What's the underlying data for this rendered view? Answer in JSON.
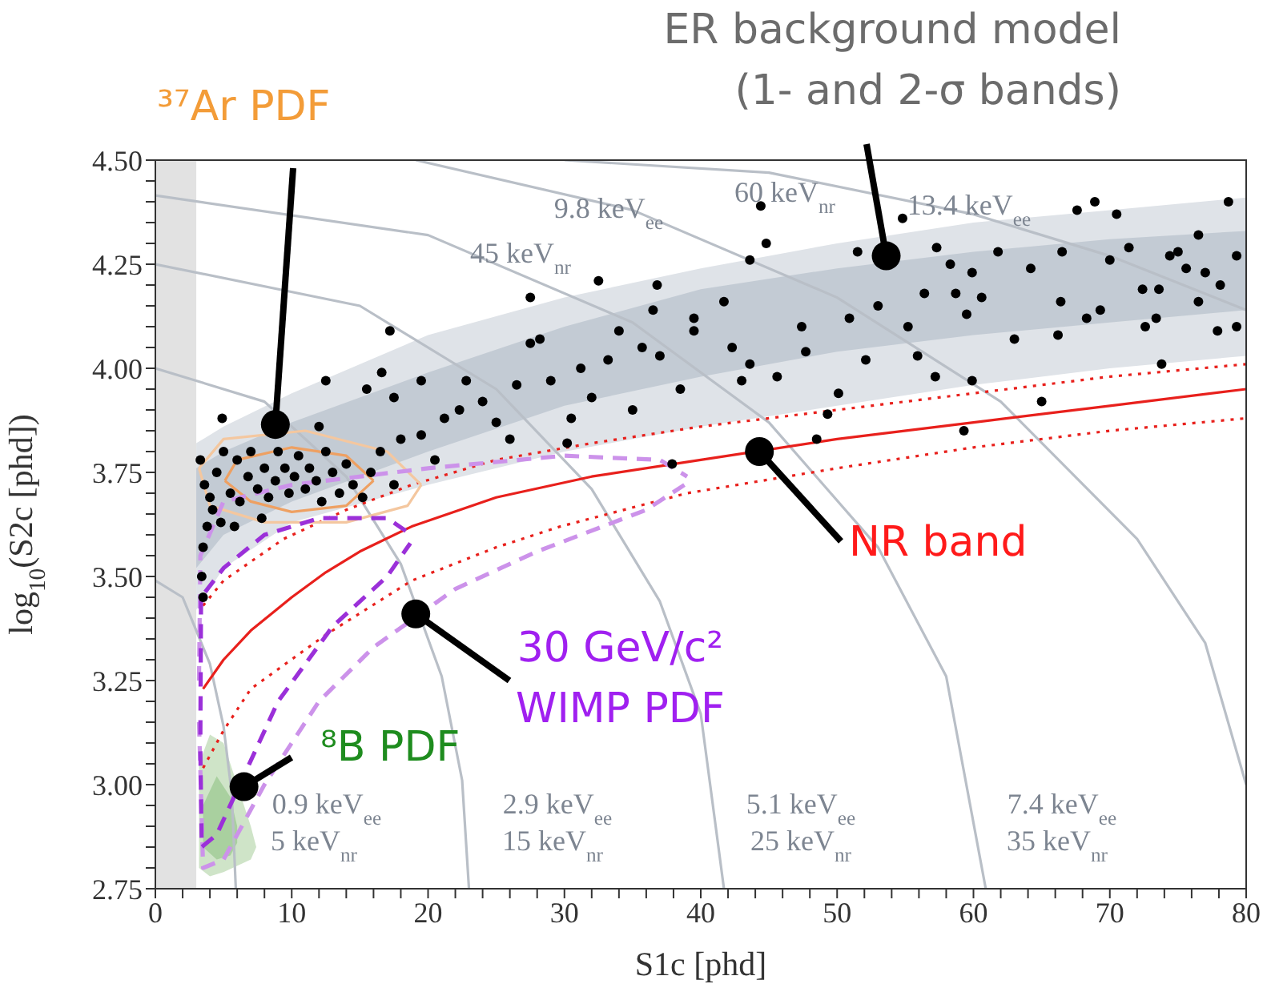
{
  "chart_data": {
    "type": "scatter",
    "xlabel": "S1c [phd]",
    "ylabel": "log$_{10}$(S2c [phd])",
    "xlim": [
      0,
      80
    ],
    "ylim": [
      2.75,
      4.5
    ],
    "xticks": [
      0,
      {
        "value": 2,
        "label": null
      },
      {
        "value": 4,
        "label": null
      },
      {
        "value": 6,
        "label": null
      },
      {
        "value": 8,
        "label": null
      },
      10,
      {
        "value": 12,
        "label": null
      },
      {
        "value": 14,
        "label": null
      },
      {
        "value": 16,
        "label": null
      },
      {
        "value": 18,
        "label": null
      },
      20,
      {
        "value": 22,
        "label": null
      },
      {
        "value": 24,
        "label": null
      },
      {
        "value": 26,
        "label": null
      },
      {
        "value": 28,
        "label": null
      },
      30,
      {
        "value": 32,
        "label": null
      },
      {
        "value": 34,
        "label": null
      },
      {
        "value": 36,
        "label": null
      },
      {
        "value": 38,
        "label": null
      },
      40,
      {
        "value": 42,
        "label": null
      },
      {
        "value": 44,
        "label": null
      },
      {
        "value": 46,
        "label": null
      },
      {
        "value": 48,
        "label": null
      },
      50,
      {
        "value": 52,
        "label": null
      },
      {
        "value": 54,
        "label": null
      },
      {
        "value": 56,
        "label": null
      },
      {
        "value": 58,
        "label": null
      },
      60,
      {
        "value": 62,
        "label": null
      },
      {
        "value": 64,
        "label": null
      },
      {
        "value": 66,
        "label": null
      },
      {
        "value": 68,
        "label": null
      },
      70,
      {
        "value": 72,
        "label": null
      },
      {
        "value": 74,
        "label": null
      },
      {
        "value": 76,
        "label": null
      },
      {
        "value": 78,
        "label": null
      },
      80
    ],
    "yticks": [
      2.75,
      {
        "value": 2.8,
        "label": null
      },
      {
        "value": 2.85,
        "label": null
      },
      {
        "value": 2.9,
        "label": null
      },
      {
        "value": 2.95,
        "label": null
      },
      {
        "value": 3,
        "label": "3.00"
      },
      {
        "value": 3.05,
        "label": null
      },
      {
        "value": 3.1,
        "label": null
      },
      {
        "value": 3.15,
        "label": null
      },
      {
        "value": 3.2,
        "label": null
      },
      3.25,
      {
        "value": 3.3,
        "label": null
      },
      {
        "value": 3.35,
        "label": null
      },
      {
        "value": 3.4,
        "label": null
      },
      {
        "value": 3.45,
        "label": null
      },
      {
        "value": 3.5,
        "label": "3.50"
      },
      {
        "value": 3.55,
        "label": null
      },
      {
        "value": 3.6,
        "label": null
      },
      {
        "value": 3.65,
        "label": null
      },
      {
        "value": 3.7,
        "label": null
      },
      3.75,
      {
        "value": 3.8,
        "label": null
      },
      {
        "value": 3.85,
        "label": null
      },
      {
        "value": 3.9,
        "label": null
      },
      {
        "value": 3.95,
        "label": null
      },
      {
        "value": 4,
        "label": "4.00"
      },
      {
        "value": 4.05,
        "label": null
      },
      {
        "value": 4.1,
        "label": null
      },
      {
        "value": 4.15,
        "label": null
      },
      {
        "value": 4.2,
        "label": null
      },
      4.25,
      {
        "value": 4.3,
        "label": null
      },
      {
        "value": 4.35,
        "label": null
      },
      {
        "value": 4.4,
        "label": null
      },
      {
        "value": 4.45,
        "label": null
      },
      {
        "value": 4.5,
        "label": "4.50"
      }
    ],
    "bands": [
      {
        "axis": "x",
        "from": 0,
        "to": 3,
        "color": "#e2e2e2"
      }
    ],
    "series": [
      {
        "type": "area",
        "color": "#dfe3e8",
        "x": [
          3,
          5,
          10,
          20,
          30,
          40,
          50,
          60,
          70,
          80
        ],
        "values": [
          null,
          null,
          null,
          null,
          null,
          null,
          null,
          null,
          null,
          null
        ],
        "lower": [
          3.42,
          3.52,
          3.63,
          3.72,
          3.8,
          3.86,
          3.91,
          3.96,
          4.0,
          4.03
        ],
        "upper": [
          3.82,
          3.86,
          3.94,
          4.08,
          4.17,
          4.24,
          4.3,
          4.35,
          4.38,
          4.41
        ]
      },
      {
        "type": "area",
        "color": "#c3cbd4",
        "x": [
          3,
          5,
          10,
          20,
          30,
          40,
          50,
          60,
          70,
          80
        ],
        "values": [
          null,
          null,
          null,
          null,
          null,
          null,
          null,
          null,
          null,
          null
        ],
        "lower": [
          3.52,
          3.6,
          3.68,
          3.8,
          3.91,
          3.98,
          4.04,
          4.08,
          4.11,
          4.14
        ],
        "upper": [
          3.76,
          3.8,
          3.87,
          3.99,
          4.1,
          4.19,
          4.24,
          4.28,
          4.31,
          4.33
        ]
      },
      {
        "type": "line",
        "color": "#b9bfc7",
        "x": [
          0,
          2,
          4,
          5,
          5.6,
          5.9
        ],
        "values": [
          3.49,
          3.45,
          3.29,
          3.14,
          2.98,
          2.75
        ]
      },
      {
        "type": "line",
        "color": "#b9bfc7",
        "x": [
          0,
          8,
          14,
          18,
          21,
          22.5,
          23
        ],
        "values": [
          4.0,
          3.92,
          3.74,
          3.53,
          3.26,
          3.01,
          2.75
        ]
      },
      {
        "type": "line",
        "color": "#b9bfc7",
        "x": [
          0,
          15,
          25,
          32,
          37,
          40,
          41.7
        ],
        "values": [
          4.25,
          4.15,
          3.95,
          3.71,
          3.44,
          3.17,
          2.75
        ]
      },
      {
        "type": "line",
        "color": "#b9bfc7",
        "x": [
          0,
          20,
          35,
          45,
          53,
          58,
          60.9
        ],
        "values": [
          4.415,
          4.32,
          4.11,
          3.87,
          3.57,
          3.26,
          2.75
        ]
      },
      {
        "type": "line",
        "color": "#b9bfc7",
        "x": [
          19.1,
          35,
          50,
          62,
          72,
          77,
          80
        ],
        "values": [
          4.5,
          4.38,
          4.17,
          3.92,
          3.59,
          3.34,
          3.0
        ]
      },
      {
        "type": "line",
        "color": "#b9bfc7",
        "x": [
          30,
          45,
          60,
          70,
          80
        ],
        "values": [
          4.5,
          4.47,
          4.37,
          4.27,
          4.14
        ]
      },
      {
        "type": "line",
        "color": "#e8201c",
        "line_style": "solid",
        "x": [
          3.5,
          5,
          7,
          10,
          12.5,
          15,
          18.8,
          25,
          32,
          40,
          50,
          60,
          70,
          80
        ],
        "values": [
          3.23,
          3.3,
          3.37,
          3.45,
          3.51,
          3.56,
          3.62,
          3.69,
          3.74,
          3.78,
          3.83,
          3.87,
          3.91,
          3.95
        ]
      },
      {
        "type": "line",
        "color": "#e8201c",
        "line_style": "dotted",
        "x": [
          3.5,
          5,
          9.4,
          14,
          18.8,
          25,
          32,
          40,
          50,
          60,
          70,
          80
        ],
        "values": [
          3.43,
          3.49,
          3.59,
          3.66,
          3.72,
          3.78,
          3.82,
          3.86,
          3.9,
          3.94,
          3.98,
          4.01
        ]
      },
      {
        "type": "line",
        "color": "#e8201c",
        "line_style": "dotted",
        "x": [
          3.5,
          5,
          7,
          12.5,
          18.8,
          25,
          29.7,
          39,
          50,
          60,
          70,
          80
        ],
        "values": [
          3.04,
          3.13,
          3.23,
          3.36,
          3.49,
          3.57,
          3.62,
          3.7,
          3.76,
          3.81,
          3.85,
          3.88
        ]
      },
      {
        "type": "area",
        "color": "#cfe4c8",
        "x": [
          3.2,
          4,
          5,
          6,
          7,
          7.4
        ],
        "values": [
          null,
          null,
          null,
          null,
          null,
          null
        ],
        "lower": [
          2.8,
          2.78,
          2.79,
          null,
          2.82,
          2.85
        ],
        "upper": [
          3.05,
          3.12,
          3.1,
          null,
          2.9,
          2.85
        ]
      },
      {
        "type": "area",
        "color": "#a9d09f",
        "x": [
          3.5,
          4.5,
          5.5,
          6
        ],
        "values": [
          null,
          null,
          null,
          null
        ],
        "lower": [
          2.85,
          2.82,
          2.83,
          2.86
        ],
        "upper": [
          2.95,
          3.02,
          2.97,
          2.9
        ]
      },
      {
        "type": "line",
        "color": "#f4c79f",
        "line_style": "solid",
        "x": [
          3.2,
          5,
          11,
          17,
          19.5
        ],
        "values": [
          3.76,
          3.83,
          3.85,
          3.8,
          3.72
        ]
      },
      {
        "type": "line",
        "color": "#f4c79f",
        "line_style": "solid",
        "x": [
          3.2,
          4,
          8,
          14,
          18.5,
          19.5
        ],
        "values": [
          3.76,
          3.67,
          3.63,
          3.63,
          3.67,
          3.72
        ]
      },
      {
        "type": "line",
        "color": "#eea062",
        "line_style": "solid",
        "x": [
          5.1,
          6,
          10,
          14,
          16
        ],
        "values": [
          3.73,
          3.78,
          3.81,
          3.79,
          3.73
        ]
      },
      {
        "type": "line",
        "color": "#eea062",
        "line_style": "solid",
        "x": [
          5.1,
          7,
          10,
          14,
          16
        ],
        "values": [
          3.73,
          3.68,
          3.655,
          3.67,
          3.73
        ]
      },
      {
        "type": "line",
        "color": "#cc92ea",
        "line_style": "dashed",
        "x": [
          3.2,
          3.3,
          5,
          10,
          20,
          30,
          37,
          39
        ],
        "values": [
          3.25,
          3.55,
          3.68,
          3.72,
          3.76,
          3.79,
          3.78,
          3.74
        ]
      },
      {
        "type": "line",
        "color": "#cc92ea",
        "line_style": "dashed",
        "x": [
          3.2,
          3.5,
          5,
          8,
          12,
          16,
          22,
          28,
          36,
          38.8
        ],
        "values": [
          3.15,
          2.8,
          2.82,
          3.0,
          3.2,
          3.33,
          3.47,
          3.56,
          3.66,
          3.72
        ]
      },
      {
        "type": "line",
        "color": "#9b30d9",
        "line_style": "dashed",
        "x": [
          3.3,
          3.35,
          5,
          8,
          12,
          17,
          18.8
        ],
        "values": [
          3.12,
          3.45,
          3.52,
          3.6,
          3.64,
          3.64,
          3.6
        ]
      },
      {
        "type": "line",
        "color": "#9b30d9",
        "line_style": "dashed",
        "x": [
          3.3,
          3.4,
          4.5,
          9,
          13,
          17,
          18.7
        ],
        "values": [
          3.08,
          2.85,
          2.88,
          3.2,
          3.38,
          3.5,
          3.58
        ]
      },
      {
        "color": "#000000",
        "marker": "circle",
        "x": [
          3.3,
          3.6,
          4.0,
          4.2,
          3.8,
          3.5,
          4.5,
          5.0,
          5.5,
          6.0,
          6.2,
          6.8,
          7.0,
          7.5,
          8.0,
          8.3,
          8.8,
          9.0,
          9.5,
          9.8,
          10.2,
          10.5,
          11.0,
          11.3,
          11.8,
          12.2,
          12.5,
          13.0,
          13.5,
          14.0,
          14.5,
          15.2,
          15.8,
          16.5,
          17.5,
          18.0,
          19.5,
          20.5,
          4.8,
          5.8,
          7.8,
          3.4,
          3.5,
          4.9,
          9.3,
          12.0,
          15.5,
          16.6,
          17.5,
          19.5,
          21.2,
          22.3,
          24.0,
          25.0,
          26.5,
          27.5,
          28.2,
          29.0,
          30.5,
          31.2,
          32.0,
          33.2,
          34.0,
          35.0,
          35.7,
          36.5,
          37.0,
          38.5,
          39.5,
          32.5,
          36.8,
          30.2,
          26.0,
          22.8,
          17.2,
          12.5,
          27.5,
          37.9,
          44.8,
          43.6,
          41.7,
          39.5,
          42.3,
          43.6,
          43.0,
          45.6,
          47.4,
          47.7,
          50.1,
          49.3,
          48.5,
          50.9,
          51.5,
          52.1,
          53.0,
          54.8,
          55.2,
          55.9,
          56.4,
          57.3,
          57.2,
          58.3,
          58.7,
          59.5,
          59.9,
          59.9,
          60.6,
          61.8,
          63.0,
          64.2,
          65.0,
          66.4,
          66.5,
          66.2,
          67.6,
          68.9,
          68.3,
          69.3,
          70.5,
          70.0,
          71.4,
          72.4,
          72.6,
          73.6,
          73.4,
          73.8,
          74.4,
          75.0,
          75.6,
          76.5,
          76.5,
          77.0,
          77.9,
          78.1,
          78.7,
          79.3,
          79.3,
          59.3,
          44.4
        ],
        "values": [
          3.78,
          3.72,
          3.69,
          3.66,
          3.62,
          3.57,
          3.75,
          3.8,
          3.7,
          3.78,
          3.68,
          3.74,
          3.8,
          3.71,
          3.76,
          3.69,
          3.73,
          3.8,
          3.76,
          3.7,
          3.74,
          3.79,
          3.71,
          3.76,
          3.73,
          3.68,
          3.8,
          3.75,
          3.7,
          3.77,
          3.72,
          3.69,
          3.75,
          3.8,
          3.72,
          3.83,
          3.84,
          3.78,
          3.63,
          3.62,
          3.64,
          3.5,
          3.45,
          3.88,
          null,
          3.86,
          3.95,
          3.99,
          3.93,
          3.97,
          3.88,
          3.9,
          3.92,
          3.87,
          3.96,
          4.06,
          4.07,
          3.97,
          3.88,
          4.0,
          3.93,
          4.02,
          4.09,
          3.9,
          4.05,
          4.14,
          4.03,
          3.95,
          4.12,
          4.21,
          4.2,
          3.82,
          3.83,
          3.97,
          4.09,
          3.97,
          4.17,
          3.77,
          4.3,
          4.26,
          4.16,
          4.09,
          4.05,
          4.01,
          3.97,
          3.98,
          4.1,
          4.04,
          3.94,
          3.89,
          3.83,
          4.12,
          4.28,
          4.02,
          4.15,
          4.36,
          4.1,
          4.03,
          4.18,
          4.29,
          3.98,
          4.25,
          4.18,
          4.13,
          3.97,
          4.23,
          4.17,
          4.28,
          4.07,
          4.24,
          3.92,
          4.16,
          4.28,
          4.08,
          4.38,
          4.4,
          4.12,
          4.14,
          4.37,
          4.26,
          4.29,
          4.19,
          4.1,
          4.19,
          4.12,
          4.01,
          4.27,
          4.28,
          4.24,
          4.32,
          4.16,
          4.23,
          4.09,
          4.2,
          4.4,
          4.27,
          4.1,
          3.85,
          4.39
        ]
      }
    ],
    "annotations": [
      {
        "text": "³⁷Ar PDF",
        "x": 8.8,
        "y": 3.865
      },
      {
        "text": "ER background model\n(1- and 2-σ bands)",
        "x": 53.6,
        "y": 4.27
      },
      {
        "text": "NR band",
        "x": 44.3,
        "y": 3.8
      },
      {
        "text": "30 GeV/c²\nWIMP PDF",
        "x": 19.1,
        "y": 3.41
      },
      {
        "text": "⁸B PDF",
        "x": 6.5,
        "y": 2.995
      },
      "9.8 keV$_{ee}$",
      "45 keV$_{nr}$",
      "60 keV$_{nr}$",
      "13.4 keV$_{ee}$",
      "0.9 keV$_{ee}$",
      "5 keV$_{nr}$",
      "2.9 keV$_{ee}$",
      "15 keV$_{nr}$",
      "5.1 keV$_{ee}$",
      "25 keV$_{nr}$",
      "7.4 keV$_{ee}$",
      "35 keV$_{nr}$"
    ]
  }
}
